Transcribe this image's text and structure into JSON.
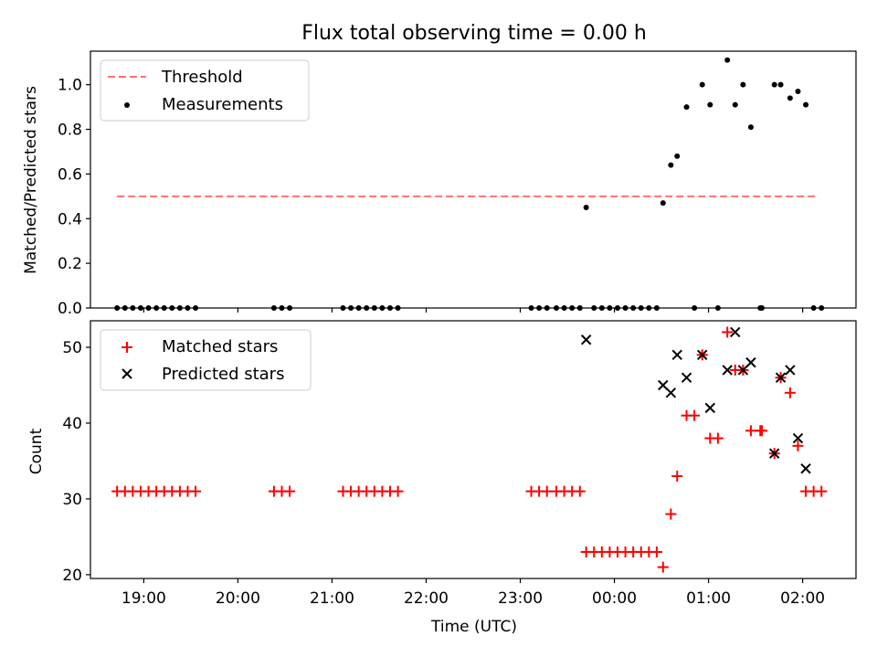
{
  "figure": {
    "title": "Flux total observing time = 0.00 h"
  },
  "chart_data": [
    {
      "type": "scatter",
      "panel": "top",
      "ylabel": "Matched/Predicted stars",
      "xlabel": "",
      "xlim": [
        "18:26",
        "02:34"
      ],
      "ylim": [
        0,
        1.15
      ],
      "yticks": [
        0.0,
        0.2,
        0.4,
        0.6,
        0.8,
        1.0
      ],
      "ytick_labels": [
        "0.0",
        "0.2",
        "0.4",
        "0.6",
        "0.8",
        "1.0"
      ],
      "grid": false,
      "legend_position": "upper-left",
      "threshold": {
        "name": "Threshold",
        "y": 0.5,
        "x_start": "18:43",
        "x_end": "02:08",
        "color": "#ff7070",
        "style": "dashed"
      },
      "series": [
        {
          "name": "Measurements",
          "color": "#000000",
          "marker": "dot",
          "points": [
            [
              "18:43",
              0
            ],
            [
              "18:48",
              0
            ],
            [
              "18:53",
              0
            ],
            [
              "18:58",
              0
            ],
            [
              "19:03",
              0
            ],
            [
              "19:08",
              0
            ],
            [
              "19:13",
              0
            ],
            [
              "19:18",
              0
            ],
            [
              "19:23",
              0
            ],
            [
              "19:28",
              0
            ],
            [
              "19:33",
              0
            ],
            [
              "20:23",
              0
            ],
            [
              "20:28",
              0
            ],
            [
              "20:33",
              0
            ],
            [
              "21:07",
              0
            ],
            [
              "21:12",
              0
            ],
            [
              "21:17",
              0
            ],
            [
              "21:22",
              0
            ],
            [
              "21:27",
              0
            ],
            [
              "21:32",
              0
            ],
            [
              "21:37",
              0
            ],
            [
              "21:42",
              0
            ],
            [
              "23:07",
              0
            ],
            [
              "23:12",
              0
            ],
            [
              "23:17",
              0
            ],
            [
              "23:23",
              0
            ],
            [
              "23:28",
              0
            ],
            [
              "23:33",
              0
            ],
            [
              "23:38",
              0
            ],
            [
              "23:42",
              0.45
            ],
            [
              "23:47",
              0
            ],
            [
              "23:52",
              0
            ],
            [
              "23:57",
              0
            ],
            [
              "00:02",
              0
            ],
            [
              "00:07",
              0
            ],
            [
              "00:12",
              0
            ],
            [
              "00:17",
              0
            ],
            [
              "00:22",
              0
            ],
            [
              "00:27",
              0
            ],
            [
              "00:31",
              0.47
            ],
            [
              "00:36",
              0.64
            ],
            [
              "00:40",
              0.68
            ],
            [
              "00:46",
              0.9
            ],
            [
              "00:51",
              0
            ],
            [
              "00:56",
              1.0
            ],
            [
              "01:01",
              0.91
            ],
            [
              "01:06",
              0
            ],
            [
              "01:12",
              1.11
            ],
            [
              "01:17",
              0.91
            ],
            [
              "01:22",
              1.0
            ],
            [
              "01:27",
              0.81
            ],
            [
              "01:33",
              0
            ],
            [
              "01:34",
              0
            ],
            [
              "01:42",
              1.0
            ],
            [
              "01:46",
              1.0
            ],
            [
              "01:52",
              0.94
            ],
            [
              "01:57",
              0.97
            ],
            [
              "02:02",
              0.91
            ],
            [
              "02:07",
              0
            ],
            [
              "02:12",
              0
            ]
          ]
        }
      ]
    },
    {
      "type": "scatter",
      "panel": "bottom",
      "ylabel": "Count",
      "xlabel": "Time (UTC)",
      "xlim": [
        "18:26",
        "02:34"
      ],
      "ylim": [
        19.5,
        53.5
      ],
      "yticks": [
        20,
        30,
        40,
        50
      ],
      "ytick_labels": [
        "20",
        "30",
        "40",
        "50"
      ],
      "xticks": [
        "19:00",
        "20:00",
        "21:00",
        "22:00",
        "23:00",
        "00:00",
        "01:00",
        "02:00"
      ],
      "grid": false,
      "legend_position": "upper-left",
      "series": [
        {
          "name": "Matched stars",
          "color": "#ff0000",
          "marker": "plus",
          "points": [
            [
              "18:43",
              31
            ],
            [
              "18:48",
              31
            ],
            [
              "18:53",
              31
            ],
            [
              "18:58",
              31
            ],
            [
              "19:03",
              31
            ],
            [
              "19:08",
              31
            ],
            [
              "19:13",
              31
            ],
            [
              "19:18",
              31
            ],
            [
              "19:23",
              31
            ],
            [
              "19:28",
              31
            ],
            [
              "19:33",
              31
            ],
            [
              "20:23",
              31
            ],
            [
              "20:28",
              31
            ],
            [
              "20:33",
              31
            ],
            [
              "21:07",
              31
            ],
            [
              "21:12",
              31
            ],
            [
              "21:17",
              31
            ],
            [
              "21:22",
              31
            ],
            [
              "21:27",
              31
            ],
            [
              "21:32",
              31
            ],
            [
              "21:37",
              31
            ],
            [
              "21:42",
              31
            ],
            [
              "23:07",
              31
            ],
            [
              "23:12",
              31
            ],
            [
              "23:17",
              31
            ],
            [
              "23:23",
              31
            ],
            [
              "23:28",
              31
            ],
            [
              "23:33",
              31
            ],
            [
              "23:38",
              31
            ],
            [
              "23:42",
              23
            ],
            [
              "23:47",
              23
            ],
            [
              "23:52",
              23
            ],
            [
              "23:57",
              23
            ],
            [
              "00:02",
              23
            ],
            [
              "00:07",
              23
            ],
            [
              "00:12",
              23
            ],
            [
              "00:17",
              23
            ],
            [
              "00:22",
              23
            ],
            [
              "00:27",
              23
            ],
            [
              "00:31",
              21
            ],
            [
              "00:36",
              28
            ],
            [
              "00:40",
              33
            ],
            [
              "00:46",
              41
            ],
            [
              "00:51",
              41
            ],
            [
              "00:56",
              49
            ],
            [
              "01:01",
              38
            ],
            [
              "01:06",
              38
            ],
            [
              "01:12",
              52
            ],
            [
              "01:17",
              47
            ],
            [
              "01:22",
              47
            ],
            [
              "01:27",
              39
            ],
            [
              "01:33",
              39
            ],
            [
              "01:34",
              39
            ],
            [
              "01:42",
              36
            ],
            [
              "01:46",
              46
            ],
            [
              "01:52",
              44
            ],
            [
              "01:57",
              37
            ],
            [
              "02:02",
              31
            ],
            [
              "02:07",
              31
            ],
            [
              "02:12",
              31
            ]
          ]
        },
        {
          "name": "Predicted stars",
          "color": "#000000",
          "marker": "cross",
          "points": [
            [
              "23:42",
              51
            ],
            [
              "00:31",
              45
            ],
            [
              "00:36",
              44
            ],
            [
              "00:40",
              49
            ],
            [
              "00:46",
              46
            ],
            [
              "00:56",
              49
            ],
            [
              "01:01",
              42
            ],
            [
              "01:12",
              47
            ],
            [
              "01:17",
              52
            ],
            [
              "01:22",
              47
            ],
            [
              "01:27",
              48
            ],
            [
              "01:42",
              36
            ],
            [
              "01:46",
              46
            ],
            [
              "01:52",
              47
            ],
            [
              "01:57",
              38
            ],
            [
              "02:02",
              34
            ]
          ]
        }
      ]
    }
  ]
}
